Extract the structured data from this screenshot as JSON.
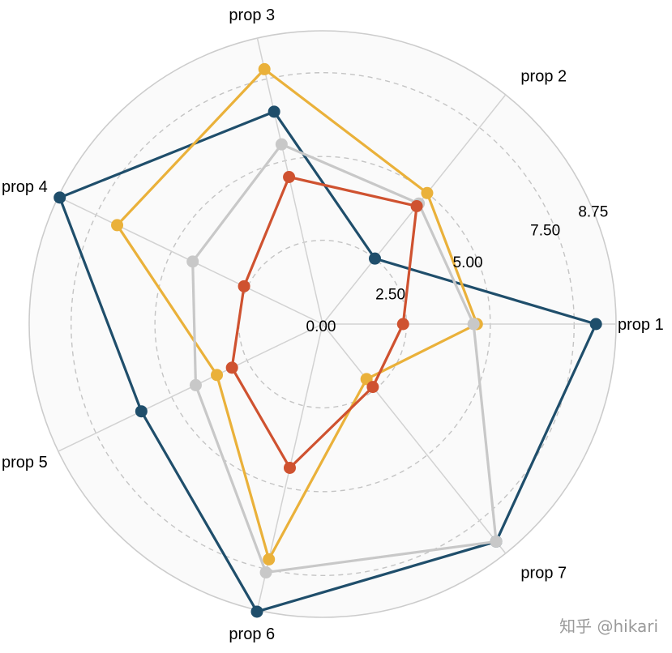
{
  "chart_data": {
    "type": "radar",
    "categories": [
      "prop 1",
      "prop 2",
      "prop 3",
      "prop 4",
      "prop 5",
      "prop 6",
      "prop 7"
    ],
    "rlim": [
      0,
      8.75
    ],
    "rticks": [
      0,
      2.5,
      5.0,
      7.5
    ],
    "rtick_labels": [
      "0.00",
      "2.50",
      "5.00",
      "7.50"
    ],
    "rmax_label": "8.75",
    "grid": true,
    "series": [
      {
        "color": "#1f4e6b",
        "values": [
          8.15,
          2.5,
          6.5,
          8.7,
          6.0,
          8.8,
          8.3
        ]
      },
      {
        "color": "#eab13a",
        "values": [
          4.6,
          5.0,
          7.8,
          6.8,
          3.5,
          7.2,
          2.1
        ]
      },
      {
        "color": "#c8c8c8",
        "values": [
          4.5,
          4.6,
          5.5,
          4.3,
          4.2,
          7.6,
          8.3
        ]
      },
      {
        "color": "#cf5230",
        "values": [
          2.4,
          4.5,
          4.5,
          2.6,
          3.0,
          4.4,
          2.4
        ]
      }
    ]
  },
  "watermark": "知乎 @hikari"
}
